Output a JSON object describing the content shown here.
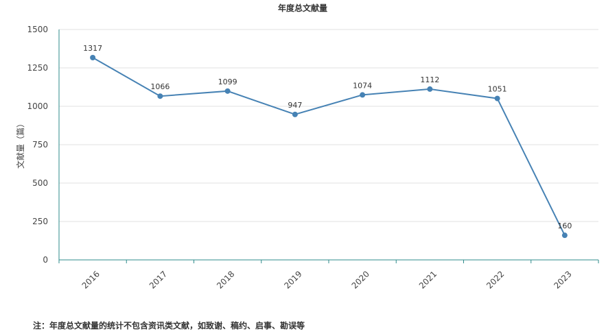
{
  "chart_data": {
    "type": "line",
    "title": "年度总文献量",
    "xlabel": "",
    "ylabel": "文献量（篇）",
    "categories": [
      "2016",
      "2017",
      "2018",
      "2019",
      "2020",
      "2021",
      "2022",
      "2023"
    ],
    "values": [
      1317,
      1066,
      1099,
      947,
      1074,
      1112,
      1051,
      160
    ],
    "data_labels": [
      "1317",
      "1066",
      "1099",
      "947",
      "1074",
      "1112",
      "1051",
      "160"
    ],
    "ylim": [
      0,
      1500
    ],
    "yticks": [
      0,
      250,
      500,
      750,
      1000,
      1250,
      1500
    ],
    "ytick_labels": [
      "0",
      "250",
      "500",
      "750",
      "1000",
      "1250",
      "1500"
    ],
    "grid": "horizontal",
    "legend": "none",
    "colors": {
      "line": "#4682b4",
      "axis": "#2e8b8b",
      "grid": "#e0e0e0"
    }
  },
  "note": "注：年度总文献量的统计不包含资讯类文献，如致谢、稿约、启事、勘误等"
}
